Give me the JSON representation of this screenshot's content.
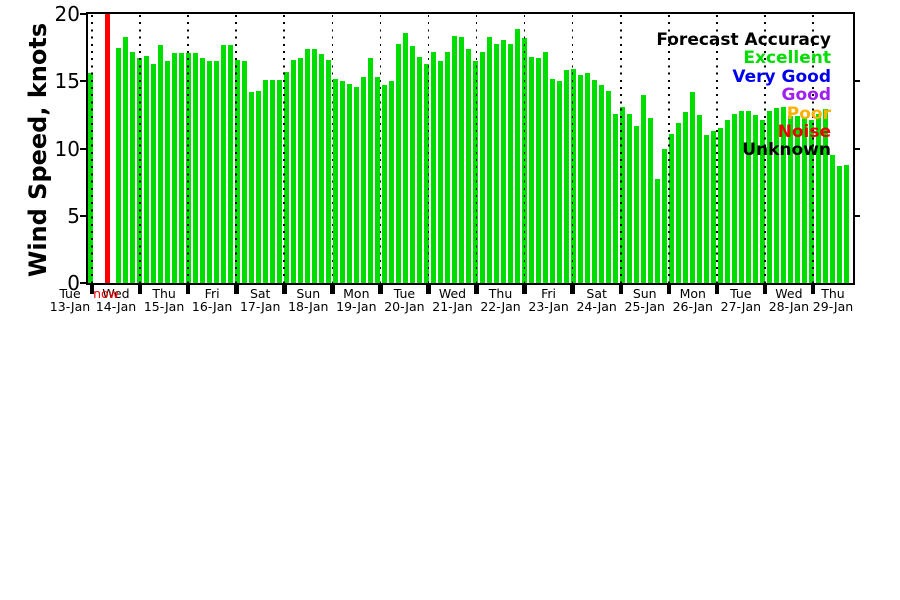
{
  "chart_data": {
    "type": "bar",
    "title": "",
    "xlabel": "",
    "ylabel": "Wind Speed, knots",
    "ylim": [
      0,
      20
    ],
    "yticks": [
      0,
      5,
      10,
      15,
      20
    ],
    "bar_unit": "knots",
    "bar_color": "#00DD00",
    "background_color": "#FFFFFF",
    "grid": "dotted vertical line at each day boundary",
    "bars_per_day": 7,
    "x_days": [
      {
        "day": "Tue",
        "date": "13-Jan"
      },
      {
        "day": "Wed",
        "date": "14-Jan"
      },
      {
        "day": "Thu",
        "date": "15-Jan"
      },
      {
        "day": "Fri",
        "date": "16-Jan"
      },
      {
        "day": "Sat",
        "date": "17-Jan"
      },
      {
        "day": "Sun",
        "date": "18-Jan"
      },
      {
        "day": "Mon",
        "date": "19-Jan"
      },
      {
        "day": "Tue",
        "date": "20-Jan"
      },
      {
        "day": "Wed",
        "date": "21-Jan"
      },
      {
        "day": "Thu",
        "date": "22-Jan"
      },
      {
        "day": "Fri",
        "date": "23-Jan"
      },
      {
        "day": "Sat",
        "date": "24-Jan"
      },
      {
        "day": "Sun",
        "date": "25-Jan"
      },
      {
        "day": "Mon",
        "date": "26-Jan"
      },
      {
        "day": "Tue",
        "date": "27-Jan"
      },
      {
        "day": "Wed",
        "date": "28-Jan"
      },
      {
        "day": "Thu",
        "date": "29-Jan"
      }
    ],
    "values": [
      15.6,
      null,
      null,
      null,
      17.5,
      18.3,
      17.2,
      16.7,
      16.9,
      16.3,
      17.7,
      16.5,
      17.1,
      17.1,
      17.1,
      17.1,
      16.7,
      16.5,
      16.5,
      17.7,
      17.7,
      16.6,
      16.5,
      14.2,
      14.3,
      15.1,
      15.1,
      15.1,
      15.7,
      16.6,
      16.7,
      17.4,
      17.4,
      17.0,
      16.6,
      15.2,
      15.0,
      14.8,
      14.6,
      15.3,
      16.7,
      15.3,
      14.7,
      15.0,
      17.8,
      18.6,
      17.6,
      16.8,
      16.3,
      17.2,
      16.5,
      17.2,
      18.4,
      18.3,
      17.4,
      16.5,
      17.2,
      18.3,
      17.8,
      18.1,
      17.8,
      18.9,
      18.2,
      16.8,
      16.7,
      17.2,
      15.2,
      15.0,
      15.8,
      15.9,
      15.5,
      15.6,
      15.1,
      14.7,
      14.3,
      12.6,
      13.1,
      12.6,
      11.7,
      14.0,
      12.3,
      7.7,
      10.0,
      11.1,
      11.9,
      12.7,
      14.2,
      12.5,
      11.0,
      11.3,
      11.5,
      12.1,
      12.6,
      12.8,
      12.8,
      12.5,
      12.1,
      12.8,
      13.0,
      13.1,
      12.4,
      12.4,
      12.3,
      12.1,
      12.6,
      12.9,
      9.5,
      8.7,
      8.8
    ],
    "now_line": {
      "present": true,
      "label": "now",
      "color": "#FF0000",
      "position": "early Wed 14-Jan, shortly after plot start"
    },
    "legend": {
      "title": "Forecast Accuracy",
      "position": "upper right, no box",
      "title_color": "#000000",
      "items": [
        {
          "label": "Excellent",
          "color": "#00DD00"
        },
        {
          "label": "Very Good",
          "color": "#0000EE"
        },
        {
          "label": "Good",
          "color": "#A020F0"
        },
        {
          "label": "Poor",
          "color": "#FFB000"
        },
        {
          "label": "Noise",
          "color": "#EE0000"
        },
        {
          "label": "Unknown",
          "color": "#000000"
        }
      ]
    }
  }
}
